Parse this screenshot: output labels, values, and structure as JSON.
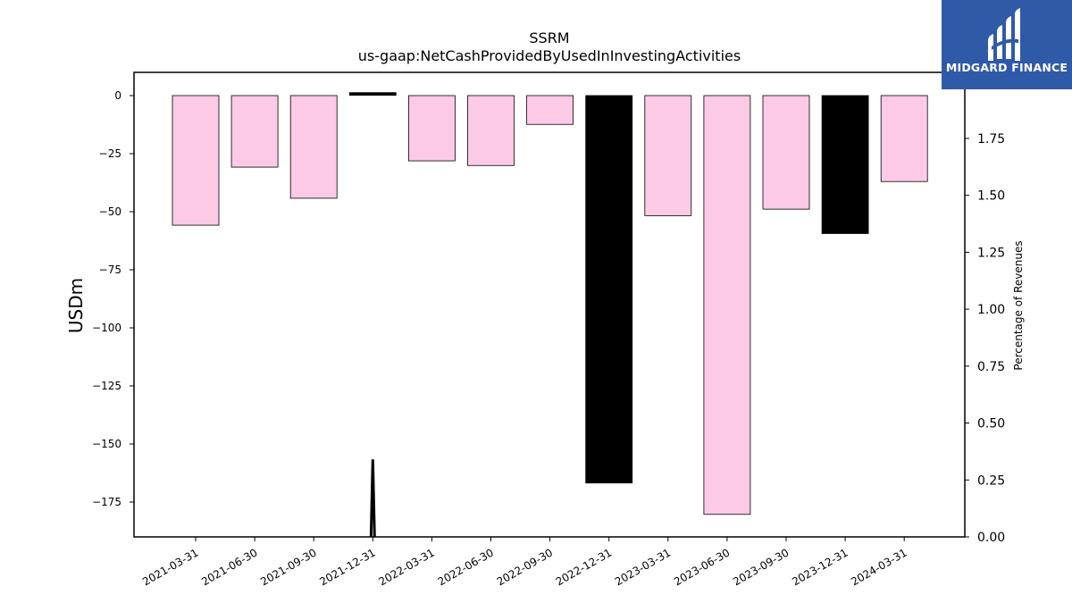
{
  "chart_data": {
    "type": "bar",
    "title": "SSRM",
    "subtitle": "us-gaap:NetCashProvidedByUsedInInvestingActivities",
    "ylabel": "USDm",
    "y2label": "Percentage of Revenues",
    "categories": [
      "2021-03-31",
      "2021-06-30",
      "2021-09-30",
      "2021-12-31",
      "2022-03-31",
      "2022-06-30",
      "2022-09-30",
      "2022-12-31",
      "2023-03-31",
      "2023-06-30",
      "2023-09-30",
      "2023-12-31",
      "2024-03-31"
    ],
    "values": [
      -55.8,
      -30.8,
      -44.2,
      0.7,
      -28.1,
      -30.1,
      -12.4,
      -166.8,
      -51.7,
      -180.3,
      -48.9,
      -59.4,
      -37.0
    ],
    "bar_colors": [
      "#fccae4",
      "#fccae4",
      "#fccae4",
      "#000000",
      "#fccae4",
      "#fccae4",
      "#fccae4",
      "#000000",
      "#fccae4",
      "#fccae4",
      "#fccae4",
      "#000000",
      "#fccae4"
    ],
    "ylim": [
      -190,
      10
    ],
    "yticks": [
      0,
      -25,
      -50,
      -75,
      -100,
      -125,
      -150,
      -175
    ],
    "ytick_labels": [
      "0",
      "−25",
      "−50",
      "−75",
      "−100",
      "−125",
      "−150",
      "−175"
    ],
    "y2lim": [
      0,
      2.04
    ],
    "y2ticks": [
      0.0,
      0.25,
      0.5,
      0.75,
      1.0,
      1.25,
      1.5,
      1.75
    ],
    "y2tick_labels": [
      "0.00",
      "0.25",
      "0.50",
      "0.75",
      "1.00",
      "1.25",
      "1.50",
      "1.75"
    ],
    "line_series": {
      "x_index": [
        2.97,
        3.0,
        3.03
      ],
      "y2": [
        0.0,
        0.34,
        0.0
      ],
      "color": "#000000"
    },
    "grid": false
  },
  "logo": {
    "text": "MIDGARD FINANCE",
    "background": "#2f5aa8"
  }
}
